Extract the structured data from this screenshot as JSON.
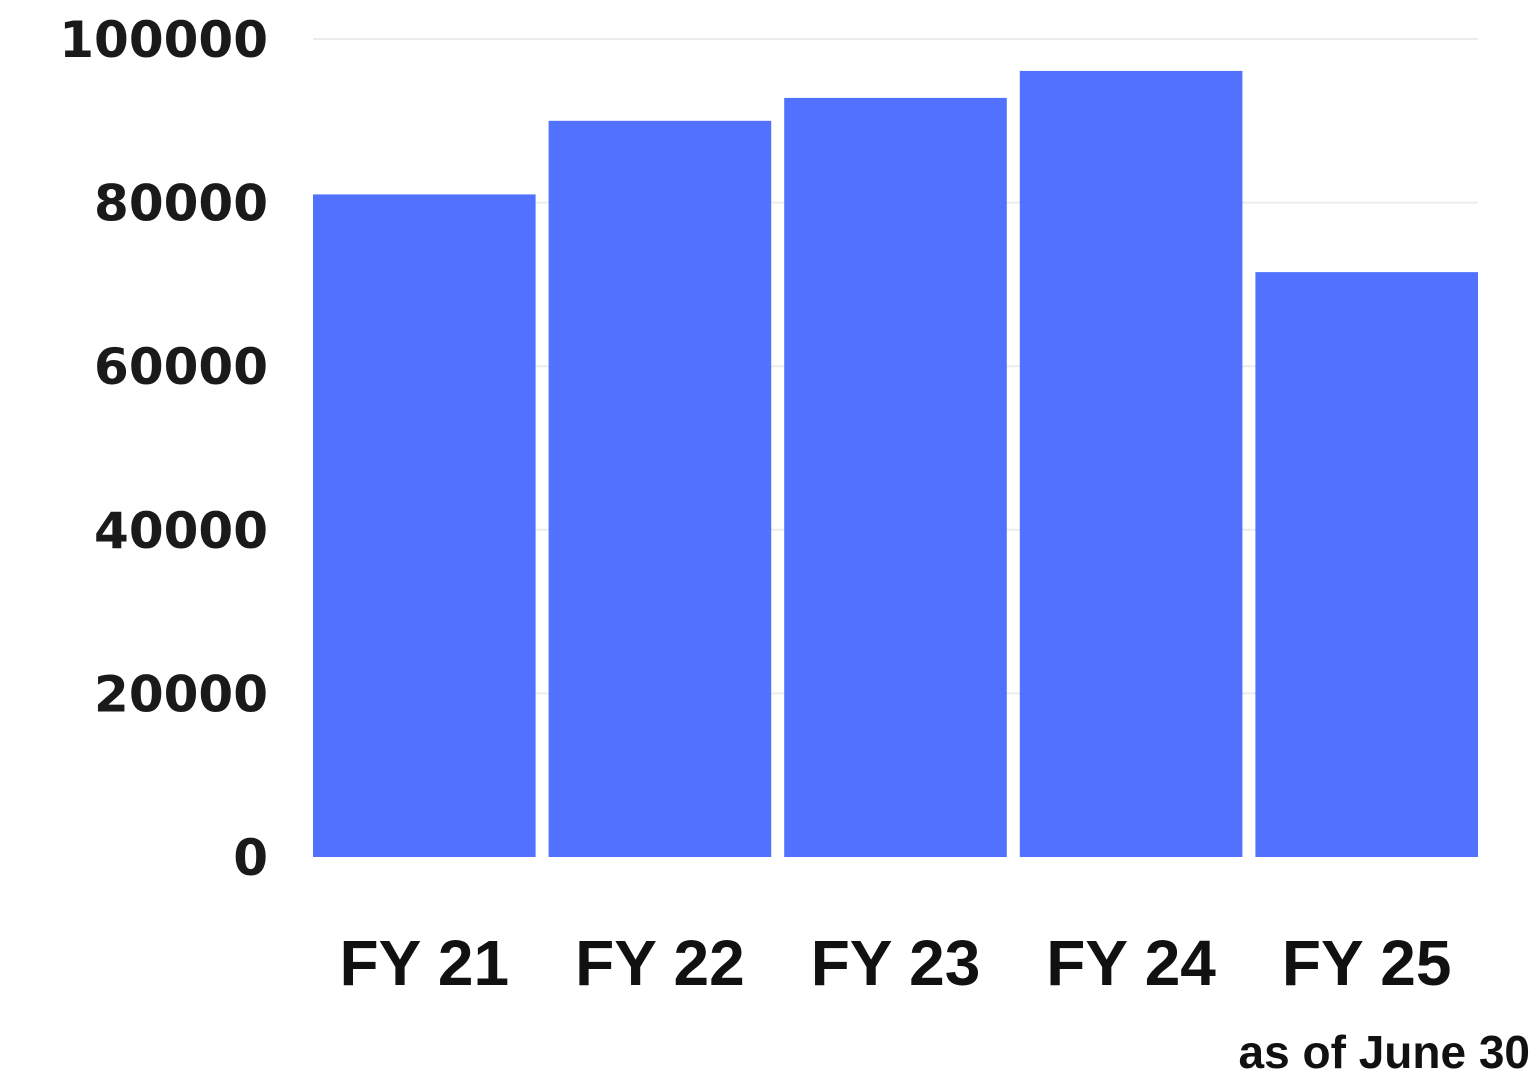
{
  "chart_data": {
    "type": "bar",
    "title": "",
    "xlabel": "",
    "ylabel": "",
    "categories": [
      "FY 21",
      "FY 22",
      "FY 23",
      "FY 24",
      "FY 25"
    ],
    "values": [
      81000,
      90000,
      92800,
      96100,
      71500
    ],
    "ylim": [
      0,
      100000
    ],
    "yticks": [
      0,
      20000,
      40000,
      60000,
      80000,
      100000
    ],
    "ytick_labels": [
      "0",
      "20000",
      "40000",
      "60000",
      "80000",
      "100000"
    ],
    "grid": true,
    "legend": "none",
    "bar_color": "#5271ff",
    "grid_color": "#ececec",
    "annotation": "as of June 30"
  }
}
